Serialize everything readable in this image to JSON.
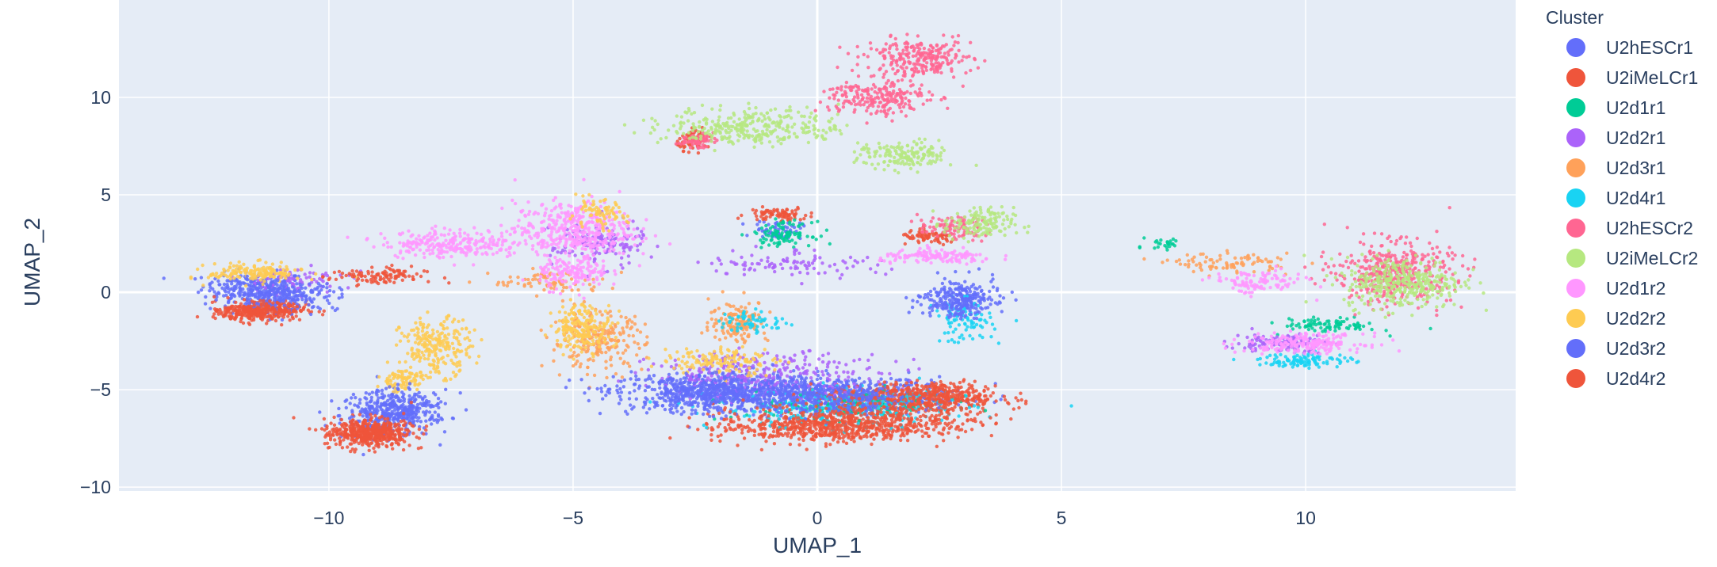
{
  "chart_data": {
    "type": "scatter",
    "xlabel": "UMAP_1",
    "ylabel": "UMAP_2",
    "xlim": [
      -14.3,
      14.3
    ],
    "ylim": [
      -10.2,
      15
    ],
    "xticks": [
      -10,
      -5,
      0,
      5,
      10
    ],
    "xtick_labels": [
      "−10",
      "−5",
      "0",
      "5",
      "10"
    ],
    "yticks": [
      -10,
      -5,
      0,
      5,
      10
    ],
    "ytick_labels": [
      "−10",
      "−5",
      "0",
      "5",
      "10"
    ],
    "grid": true,
    "legend": {
      "title": "Cluster",
      "placement": "right",
      "entries": [
        {
          "name": "U2hESCr1",
          "color": "#636efa"
        },
        {
          "name": "U2iMeLCr1",
          "color": "#EF553B"
        },
        {
          "name": "U2d1r1",
          "color": "#00cc96"
        },
        {
          "name": "U2d2r1",
          "color": "#ab63fa"
        },
        {
          "name": "U2d3r1",
          "color": "#FFA15A"
        },
        {
          "name": "U2d4r1",
          "color": "#19d3f3"
        },
        {
          "name": "U2hESCr2",
          "color": "#FF6692"
        },
        {
          "name": "U2iMeLCr2",
          "color": "#B6E880"
        },
        {
          "name": "U2d1r2",
          "color": "#FF97FF"
        },
        {
          "name": "U2d2r2",
          "color": "#FECB52"
        },
        {
          "name": "U2d3r2",
          "color": "#636efa"
        },
        {
          "name": "U2d4r2",
          "color": "#EF553B"
        }
      ]
    },
    "series": [
      {
        "name": "U2hESCr1",
        "regions": [
          [
            -11.5,
            0.3,
            0.9,
            0.6,
            200
          ],
          [
            -8.8,
            -6.3,
            0.8,
            1.0,
            220
          ],
          [
            -2.0,
            -5.0,
            1.8,
            0.8,
            450
          ],
          [
            0.5,
            -5.2,
            2.0,
            0.7,
            400
          ],
          [
            3.0,
            -0.2,
            0.6,
            0.8,
            120
          ],
          [
            -0.8,
            3.2,
            0.4,
            0.4,
            60
          ]
        ]
      },
      {
        "name": "U2iMeLCr1",
        "regions": [
          [
            -11.3,
            -0.9,
            0.7,
            0.4,
            200
          ],
          [
            -9.3,
            -7.2,
            0.7,
            0.6,
            260
          ],
          [
            0.0,
            -7.0,
            1.8,
            0.6,
            450
          ],
          [
            1.8,
            -5.5,
            1.6,
            0.6,
            400
          ],
          [
            -2.5,
            7.8,
            0.3,
            0.4,
            70
          ],
          [
            2.3,
            2.8,
            0.5,
            0.3,
            80
          ],
          [
            -0.8,
            4.0,
            0.5,
            0.3,
            80
          ]
        ]
      },
      {
        "name": "U2d1r1",
        "regions": [
          [
            -0.7,
            3.0,
            0.5,
            0.5,
            100
          ],
          [
            0.5,
            -5.8,
            1.8,
            0.6,
            150
          ],
          [
            10.5,
            -1.7,
            0.8,
            0.3,
            90
          ],
          [
            7.1,
            2.5,
            0.3,
            0.3,
            25
          ]
        ]
      },
      {
        "name": "U2d2r1",
        "regions": [
          [
            -4.5,
            2.5,
            0.8,
            1.0,
            150
          ],
          [
            -1.0,
            -4.2,
            2.0,
            0.9,
            300
          ],
          [
            -0.5,
            1.5,
            1.5,
            0.6,
            100
          ],
          [
            9.5,
            -2.6,
            0.8,
            0.4,
            120
          ],
          [
            -10.8,
            0.6,
            1.0,
            0.6,
            80
          ]
        ]
      },
      {
        "name": "U2d3r1",
        "regions": [
          [
            -4.5,
            -2.5,
            0.8,
            1.2,
            220
          ],
          [
            -1.6,
            -1.5,
            0.5,
            0.9,
            150
          ],
          [
            -5.5,
            0.5,
            1.0,
            0.5,
            80
          ],
          [
            8.5,
            1.5,
            1.0,
            0.4,
            90
          ]
        ]
      },
      {
        "name": "U2d4r1",
        "regions": [
          [
            0.5,
            -6.0,
            2.2,
            0.8,
            250
          ],
          [
            3.0,
            -1.5,
            0.5,
            0.9,
            90
          ],
          [
            10.0,
            -3.5,
            0.8,
            0.3,
            110
          ],
          [
            -1.3,
            -1.5,
            0.6,
            0.5,
            60
          ]
        ]
      },
      {
        "name": "U2hESCr2",
        "regions": [
          [
            2.1,
            12.0,
            0.9,
            0.8,
            260
          ],
          [
            1.2,
            10.0,
            0.9,
            0.8,
            220
          ],
          [
            11.8,
            1.0,
            1.0,
            1.3,
            420
          ],
          [
            2.8,
            3.3,
            0.6,
            0.5,
            100
          ],
          [
            -2.5,
            7.8,
            0.3,
            0.3,
            60
          ]
        ]
      },
      {
        "name": "U2iMeLCr2",
        "regions": [
          [
            -1.3,
            8.5,
            1.5,
            0.8,
            320
          ],
          [
            1.8,
            7.0,
            0.8,
            0.6,
            160
          ],
          [
            3.3,
            3.5,
            0.6,
            0.7,
            150
          ],
          [
            12.0,
            0.5,
            1.0,
            1.1,
            350
          ]
        ]
      },
      {
        "name": "U2d1r2",
        "regions": [
          [
            -5.0,
            3.2,
            1.0,
            1.2,
            420
          ],
          [
            -7.5,
            2.5,
            1.2,
            0.6,
            260
          ],
          [
            -5.0,
            1.0,
            0.6,
            0.7,
            150
          ],
          [
            2.5,
            1.8,
            1.0,
            0.3,
            140
          ],
          [
            10.0,
            -2.6,
            1.0,
            0.4,
            220
          ],
          [
            9.0,
            0.5,
            0.8,
            0.5,
            110
          ]
        ]
      },
      {
        "name": "U2d2r2",
        "regions": [
          [
            -11.5,
            1.0,
            0.8,
            0.4,
            160
          ],
          [
            -7.8,
            -2.8,
            0.6,
            1.2,
            240
          ],
          [
            -4.8,
            -1.8,
            0.5,
            1.0,
            200
          ],
          [
            -2.0,
            -3.5,
            1.0,
            0.6,
            140
          ],
          [
            -8.5,
            -4.5,
            0.4,
            0.5,
            90
          ],
          [
            -4.5,
            4.0,
            0.5,
            0.6,
            80
          ]
        ]
      },
      {
        "name": "U2d3r2",
        "regions": [
          [
            -11.0,
            -0.2,
            1.0,
            0.6,
            260
          ],
          [
            -8.5,
            -6.0,
            0.8,
            0.8,
            230
          ],
          [
            -2.0,
            -5.3,
            1.5,
            0.8,
            420
          ],
          [
            0.5,
            -5.5,
            1.5,
            0.7,
            300
          ],
          [
            2.8,
            -0.5,
            0.6,
            0.7,
            160
          ]
        ]
      },
      {
        "name": "U2d4r2",
        "regions": [
          [
            -11.5,
            -1.0,
            0.6,
            0.4,
            230
          ],
          [
            -9.0,
            -7.2,
            0.6,
            0.6,
            260
          ],
          [
            1.0,
            -6.5,
            2.0,
            0.7,
            400
          ],
          [
            2.5,
            -5.2,
            1.0,
            0.5,
            200
          ],
          [
            -9.0,
            0.8,
            0.8,
            0.4,
            110
          ]
        ]
      }
    ]
  }
}
